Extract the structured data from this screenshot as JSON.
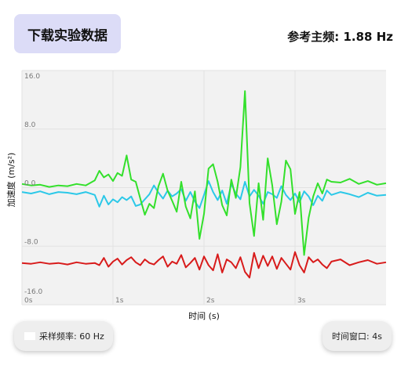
{
  "header": {
    "download_label": "下载实验数据",
    "reference_frequency": "参考主频: 1.88 Hz"
  },
  "controls": {
    "sample_rate_label": "采样频率: 60 Hz",
    "time_window_label": "时间窗口: 4s"
  },
  "colors": {
    "button_bg": "#dcdcf7",
    "plot_bg": "#f2f2f2",
    "series_x": "#d81b1b",
    "series_y": "#2bc8e8",
    "series_z": "#33e02b"
  },
  "chart_data": {
    "type": "line",
    "title": "",
    "xlabel": "时间 (s)",
    "ylabel": "加速度 (m/s²)",
    "xlim": [
      0,
      4
    ],
    "ylim": [
      -16,
      16
    ],
    "x_ticks": [
      0,
      1,
      2,
      3
    ],
    "x_tick_labels": [
      "0s",
      "1s",
      "2s",
      "3s"
    ],
    "y_ticks": [
      16,
      8,
      0,
      -8,
      -16
    ],
    "y_tick_labels": [
      "16.0",
      "8.0",
      "0.0",
      "-8.0",
      "-16.0"
    ],
    "grid": true,
    "series": [
      {
        "color": "#d81b1b",
        "x": [
          0.0,
          0.1,
          0.2,
          0.3,
          0.4,
          0.5,
          0.6,
          0.7,
          0.8,
          0.85,
          0.9,
          0.95,
          1.0,
          1.05,
          1.1,
          1.15,
          1.2,
          1.25,
          1.3,
          1.35,
          1.4,
          1.45,
          1.5,
          1.55,
          1.6,
          1.65,
          1.7,
          1.75,
          1.8,
          1.85,
          1.9,
          1.95,
          2.0,
          2.05,
          2.1,
          2.15,
          2.2,
          2.25,
          2.3,
          2.35,
          2.4,
          2.45,
          2.5,
          2.55,
          2.6,
          2.65,
          2.7,
          2.75,
          2.8,
          2.85,
          2.9,
          2.95,
          3.0,
          3.05,
          3.1,
          3.15,
          3.2,
          3.25,
          3.3,
          3.35,
          3.4,
          3.5,
          3.6,
          3.7,
          3.8,
          3.9,
          4.0
        ],
        "y": [
          -10.3,
          -10.4,
          -10.2,
          -10.4,
          -10.3,
          -10.5,
          -10.2,
          -10.4,
          -10.3,
          -10.6,
          -9.6,
          -10.8,
          -10.1,
          -9.7,
          -10.5,
          -9.9,
          -9.5,
          -10.2,
          -10.6,
          -9.8,
          -10.3,
          -10.5,
          -9.9,
          -9.4,
          -10.8,
          -10.1,
          -10.4,
          -9.2,
          -10.9,
          -10.3,
          -9.6,
          -11.2,
          -9.4,
          -10.6,
          -11.3,
          -9.1,
          -11.6,
          -9.8,
          -10.2,
          -11.0,
          -9.5,
          -11.5,
          -12.3,
          -8.9,
          -11.0,
          -9.3,
          -10.7,
          -9.4,
          -11.1,
          -9.6,
          -10.4,
          -11.2,
          -8.8,
          -10.6,
          -11.6,
          -9.5,
          -10.2,
          -9.8,
          -10.5,
          -11.0,
          -10.1,
          -9.8,
          -10.6,
          -10.2,
          -9.9,
          -10.4,
          -10.2
        ]
      },
      {
        "color": "#2bc8e8",
        "x": [
          0.0,
          0.1,
          0.2,
          0.3,
          0.4,
          0.5,
          0.6,
          0.7,
          0.8,
          0.85,
          0.9,
          0.95,
          1.0,
          1.05,
          1.1,
          1.15,
          1.2,
          1.25,
          1.3,
          1.35,
          1.4,
          1.45,
          1.5,
          1.55,
          1.6,
          1.65,
          1.7,
          1.75,
          1.8,
          1.85,
          1.9,
          1.95,
          2.0,
          2.05,
          2.1,
          2.15,
          2.2,
          2.25,
          2.3,
          2.35,
          2.4,
          2.45,
          2.5,
          2.55,
          2.6,
          2.65,
          2.7,
          2.75,
          2.8,
          2.85,
          2.9,
          2.95,
          3.0,
          3.05,
          3.1,
          3.15,
          3.2,
          3.25,
          3.3,
          3.35,
          3.4,
          3.5,
          3.6,
          3.7,
          3.8,
          3.9,
          4.0
        ],
        "y": [
          -0.6,
          -0.8,
          -0.5,
          -0.9,
          -0.6,
          -0.7,
          -0.9,
          -0.6,
          -1.0,
          -2.6,
          -1.1,
          -2.3,
          -1.6,
          -2.0,
          -1.3,
          -1.7,
          -1.2,
          -2.5,
          -2.3,
          -1.6,
          -0.9,
          0.3,
          -0.7,
          -1.5,
          -0.4,
          -1.2,
          -0.8,
          -0.2,
          -1.8,
          -0.6,
          -1.9,
          -2.8,
          -1.0,
          0.9,
          -0.6,
          -1.7,
          -0.4,
          -2.2,
          0.5,
          -0.8,
          -1.6,
          0.8,
          -1.2,
          -0.3,
          -1.1,
          -2.2,
          -0.6,
          -0.9,
          -1.4,
          0.2,
          -1.0,
          -1.7,
          -0.8,
          -2.0,
          -0.5,
          -1.2,
          -2.4,
          -1.1,
          -1.8,
          -0.4,
          -1.0,
          -0.6,
          -0.9,
          -1.3,
          -0.7,
          -1.1,
          -1.0
        ]
      },
      {
        "color": "#33e02b",
        "x": [
          0.0,
          0.1,
          0.2,
          0.3,
          0.4,
          0.5,
          0.6,
          0.7,
          0.8,
          0.85,
          0.9,
          0.95,
          1.0,
          1.05,
          1.1,
          1.15,
          1.2,
          1.25,
          1.3,
          1.35,
          1.4,
          1.45,
          1.5,
          1.55,
          1.6,
          1.65,
          1.7,
          1.75,
          1.8,
          1.85,
          1.9,
          1.95,
          2.0,
          2.05,
          2.1,
          2.15,
          2.2,
          2.25,
          2.3,
          2.35,
          2.4,
          2.45,
          2.5,
          2.55,
          2.6,
          2.65,
          2.7,
          2.75,
          2.8,
          2.85,
          2.9,
          2.95,
          3.0,
          3.05,
          3.1,
          3.15,
          3.2,
          3.25,
          3.3,
          3.35,
          3.4,
          3.5,
          3.6,
          3.7,
          3.8,
          3.9,
          4.0
        ],
        "y": [
          0.5,
          0.3,
          0.4,
          0.1,
          0.3,
          0.2,
          0.5,
          0.3,
          1.0,
          2.3,
          1.4,
          1.8,
          0.9,
          2.0,
          1.6,
          4.4,
          1.1,
          0.8,
          -1.5,
          -3.7,
          -2.2,
          -2.8,
          0.2,
          1.9,
          -0.4,
          -1.8,
          -3.3,
          0.8,
          -2.6,
          -4.2,
          -0.5,
          -7.0,
          -3.6,
          2.6,
          3.2,
          0.8,
          -2.4,
          -3.8,
          1.1,
          -1.4,
          2.8,
          13.2,
          -2.1,
          -6.6,
          0.6,
          -4.4,
          4.0,
          0.3,
          -5.0,
          -1.9,
          3.7,
          2.5,
          -3.6,
          -0.6,
          -9.2,
          -4.1,
          -1.2,
          0.6,
          -0.8,
          1.1,
          0.8,
          0.7,
          1.2,
          0.5,
          0.9,
          0.4,
          0.6
        ]
      }
    ]
  }
}
